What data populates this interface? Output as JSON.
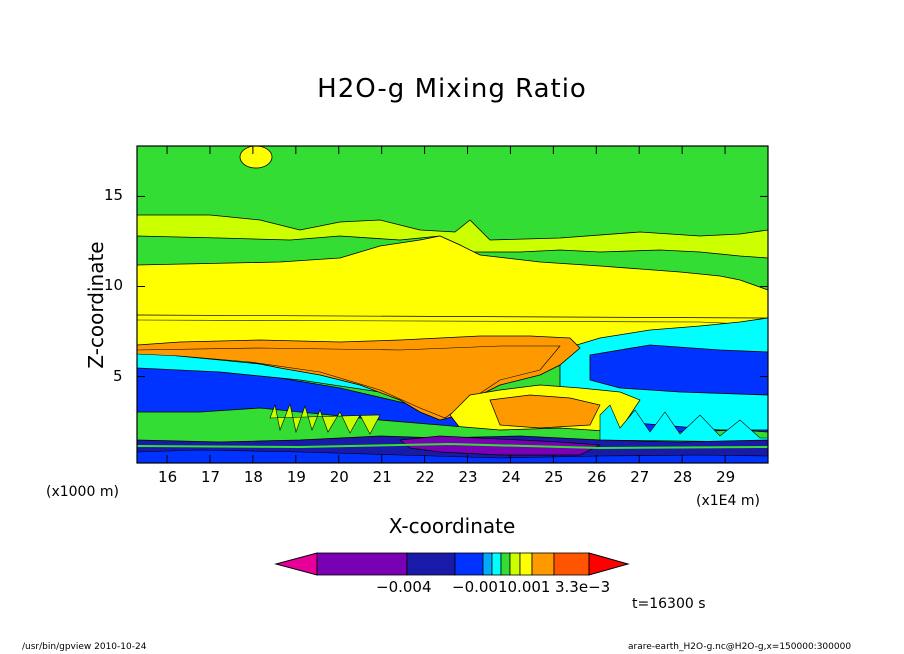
{
  "chart_data": {
    "type": "heatmap",
    "title": "H2O-g Mixing Ratio",
    "xlabel": "X-coordinate",
    "ylabel": "Z-coordinate",
    "x_unit_left": "(x1000 m)",
    "x_unit_right": "(x1E4 m)",
    "xlim": [
      15.3,
      30.0
    ],
    "ylim": [
      0.2,
      17.8
    ],
    "xticks": [
      16,
      17,
      18,
      19,
      20,
      21,
      22,
      23,
      24,
      25,
      26,
      27,
      28,
      29
    ],
    "yticks": [
      5,
      10,
      15
    ],
    "colorbar": {
      "colors": [
        "#e60099",
        "#7a00b3",
        "#1a1aa8",
        "#0033ff",
        "#00aaff",
        "#00ffff",
        "#33dd33",
        "#ccff00",
        "#ffff00",
        "#ff9900",
        "#ff5500",
        "#ff0000"
      ],
      "labels": [
        "−0.004",
        "−0.0010.001",
        "3.3e−3"
      ]
    },
    "time_label": "t=16300 s",
    "footer_left": "/usr/bin/gpview   2010-10-24",
    "footer_right": "arare-earth_H2O-g.nc@H2O-g,x=150000:300000",
    "regions": [
      {
        "name": "upper",
        "color": "#33dd33",
        "z": [
          13.6,
          17.8
        ]
      },
      {
        "name": "yellow-band",
        "color": "#ffff00",
        "z": [
          8.4,
          11.2
        ]
      },
      {
        "name": "core",
        "color": "#ff9900",
        "z": [
          2.5,
          6.8
        ]
      },
      {
        "name": "mid-blue",
        "color": "#0033ff",
        "z": [
          3.5,
          5.4
        ]
      },
      {
        "name": "lower-green",
        "color": "#33dd33",
        "z": [
          1.5,
          3.0
        ]
      },
      {
        "name": "bottom-blue",
        "color": "#1a1aa8",
        "z": [
          0.2,
          1.5
        ]
      },
      {
        "name": "purple-patch",
        "color": "#7a00b3",
        "z": [
          0.7,
          1.5
        ]
      }
    ]
  }
}
